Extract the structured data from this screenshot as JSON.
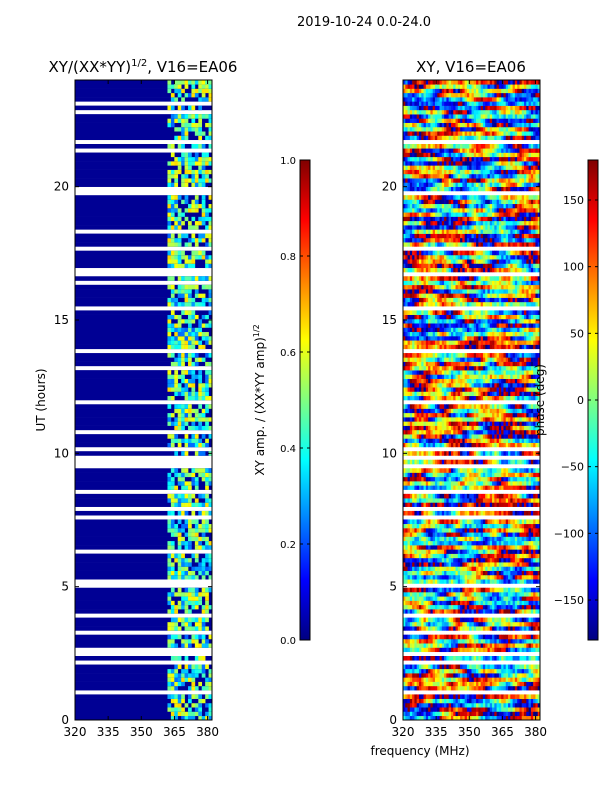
{
  "suptitle": "2019-10-24 0.0-24.0",
  "figure_xlabel": "frequency (MHz)",
  "colors": {
    "jet": [
      "#000080",
      "#0000ff",
      "#0080ff",
      "#00ffff",
      "#80ff80",
      "#ffff00",
      "#ff8000",
      "#ff0000",
      "#800000"
    ],
    "axis": "#000000",
    "background": "#ffffff"
  },
  "chart_data": [
    {
      "type": "heatmap",
      "title_main": "XY/(XX*YY)",
      "title_sup": "1/2",
      "title_tail": ", V16=EA06",
      "xlabel": "",
      "ylabel": "UT (hours)",
      "xlim": [
        320,
        382
      ],
      "ylim": [
        0,
        24
      ],
      "xticks": [
        320,
        335,
        350,
        365,
        380
      ],
      "xtick_labels": [
        "320",
        "335",
        "350",
        "365",
        "380"
      ],
      "yticks": [
        0,
        5,
        10,
        15,
        20
      ],
      "ytick_labels": [
        "0",
        "5",
        "10",
        "15",
        "20"
      ],
      "pattern": "mostly low amplitude (dark blue) with brighter cyan/yellow band near 362-382 MHz; white gaps = flagged data"
    },
    {
      "type": "heatmap",
      "title_main": "XY, V16=EA06",
      "xlabel": "",
      "ylabel": "",
      "xlim": [
        320,
        382
      ],
      "ylim": [
        0,
        24
      ],
      "xticks": [
        320,
        335,
        350,
        365,
        380
      ],
      "xtick_labels": [
        "320",
        "335",
        "350",
        "365",
        "380"
      ],
      "yticks": [
        0,
        5,
        10,
        15,
        20
      ],
      "ytick_labels": [
        "0",
        "5",
        "10",
        "15",
        "20"
      ],
      "pattern": "noisy phase across full band, values spanning -180 to 180 deg"
    }
  ],
  "colorbars": [
    {
      "label_main": "XY amp. / (XX*YY amp)",
      "label_sup": "1/2",
      "range": [
        0.0,
        1.0
      ],
      "ticks": [
        0.0,
        0.2,
        0.4,
        0.6,
        0.8,
        1.0
      ],
      "tick_labels": [
        "0.0",
        "0.2",
        "0.4",
        "0.6",
        "0.8",
        "1.0"
      ]
    },
    {
      "label": "phase (deg)",
      "range": [
        -180,
        180
      ],
      "ticks": [
        -150,
        -100,
        -50,
        0,
        50,
        100,
        150
      ],
      "tick_labels": [
        "−150",
        "−100",
        "−50",
        "0",
        "50",
        "100",
        "150"
      ]
    }
  ]
}
